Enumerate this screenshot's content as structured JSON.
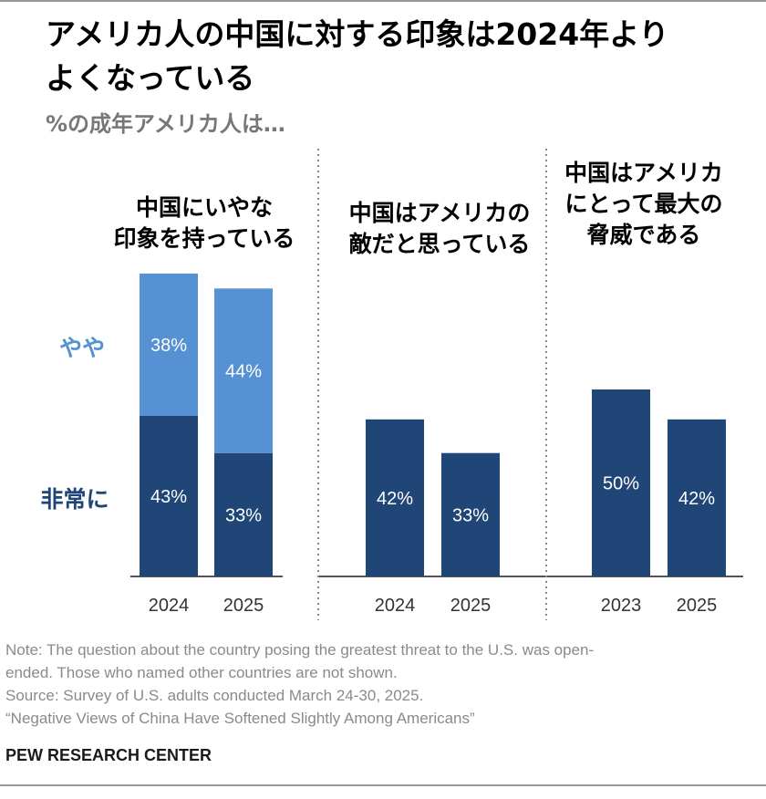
{
  "header": {
    "title_line1": "アメリカ人の中国に対する印象は2024年より",
    "title_line2": "よくなっている",
    "subtitle": "%の成年アメリカ人は…"
  },
  "chart_data": {
    "type": "bar",
    "colors": {
      "very": "#1f4677",
      "somewhat": "#5591d3",
      "axis": "#555555",
      "divider": "#888888"
    },
    "legend": {
      "somewhat": "やや",
      "very": "非常に"
    },
    "ylim": [
      0,
      100
    ],
    "panels": [
      {
        "title_lines": [
          "中国にいやな",
          "印象を持っている"
        ],
        "categories": [
          "2024",
          "2025"
        ],
        "stacked": true,
        "series": [
          {
            "name": "非常に",
            "values": [
              43,
              33
            ]
          },
          {
            "name": "やや",
            "values": [
              38,
              44
            ]
          }
        ]
      },
      {
        "title_lines": [
          "中国はアメリカの",
          "敵だと思っている"
        ],
        "categories": [
          "2024",
          "2025"
        ],
        "stacked": false,
        "series": [
          {
            "values": [
              42,
              33
            ]
          }
        ]
      },
      {
        "title_lines": [
          "中国はアメリカ",
          "にとって最大の",
          "脅威である"
        ],
        "categories": [
          "2023",
          "2025"
        ],
        "stacked": false,
        "series": [
          {
            "values": [
              50,
              42
            ]
          }
        ]
      }
    ]
  },
  "footer": {
    "note_lines": [
      "Note: The question about the country posing the greatest threat to the U.S. was open-",
      "ended. Those who named other countries are not shown.",
      "Source: Survey of U.S. adults conducted March 24-30, 2025.",
      "“Negative Views of China Have Softened Slightly Among Americans”"
    ],
    "brand": "PEW RESEARCH CENTER"
  }
}
